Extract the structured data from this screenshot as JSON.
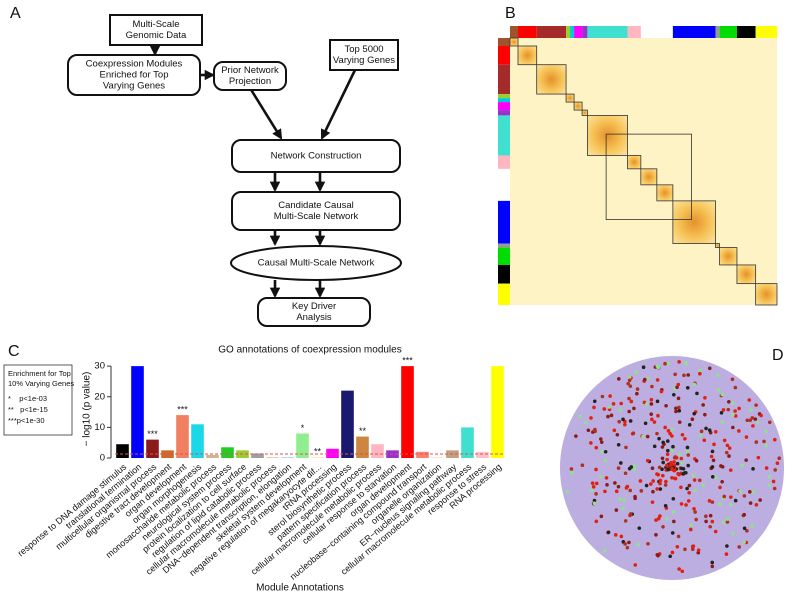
{
  "panel_labels": [
    "A",
    "B",
    "C",
    "D"
  ],
  "diagram": {
    "nodes": [
      {
        "lines": [
          "Multi-Scale",
          "Genomic Data"
        ]
      },
      {
        "lines": [
          "Coexpression Modules",
          "Enriched for Top",
          "Varying Genes"
        ]
      },
      {
        "lines": [
          "Prior Network",
          "Projection"
        ]
      },
      {
        "lines": [
          "Top 5000",
          "Varying Genes"
        ]
      },
      {
        "lines": [
          "Network Construction"
        ]
      },
      {
        "lines": [
          "Candidate Causal",
          "Multi-Scale Network"
        ]
      },
      {
        "lines": [
          "Causal Multi-Scale Network"
        ]
      },
      {
        "lines": [
          "Key Driver",
          "Analysis"
        ]
      }
    ]
  },
  "chart_data": {
    "type": "bar",
    "title": "GO annotations of coexpression modules",
    "x_label": "Module Annotations",
    "y_label": "− log10 (p value)",
    "categories": [
      "response to DNA damage stimulus",
      "translational termination",
      "multicellular organismal process",
      "digestive tract development",
      "organ development",
      "organ morphogenesis",
      "monosaccharide metabolic process",
      "neurological system process",
      "protein localization to cell surface",
      "regulation of lipid catabolic process",
      "cellular macromolecule metabolic process",
      "DNA−dependent transcription, elongation",
      "skeletal system development",
      "negative regulation of megakaryocyte dif...",
      "tRNA processing",
      "sterol biosynthetic process",
      "pattern specification process",
      "cellular macromolecule metabolic process",
      "cellular response to starvation",
      "organ development",
      "nucleobase−containing compound transport",
      "organelle organization",
      "ER−nucleus signaling pathway",
      "cellular macromolecule metabolic process",
      "response to stress",
      "RNA processing"
    ],
    "values": [
      4.5,
      30,
      6,
      2.5,
      14,
      11,
      1,
      3.5,
      2.5,
      1.5,
      0.3,
      0.3,
      8,
      0.3,
      3,
      22,
      7,
      4.5,
      2.5,
      30,
      2,
      0.3,
      2.5,
      10,
      2,
      30
    ],
    "colors": [
      "#000000",
      "#0000ff",
      "#8b1a1a",
      "#cd6a2b",
      "#f08060",
      "#1ad8e8",
      "#d2b48c",
      "#22cc22",
      "#9acd32",
      "#a0a0a0",
      "#e8c8a8",
      "#add8e6",
      "#90ee90",
      "#ffe4b5",
      "#ff00ff",
      "#191970",
      "#cd853f",
      "#ffb6c1",
      "#9932cc",
      "#ff0000",
      "#fa8072",
      "#ffe4e1",
      "#c0a080",
      "#40e0d0",
      "#ffc0cb",
      "#ffff00"
    ],
    "significance": [
      null,
      null,
      "***",
      null,
      "***",
      null,
      null,
      null,
      null,
      null,
      null,
      null,
      "*",
      "**",
      null,
      null,
      "**",
      null,
      null,
      "***",
      null,
      null,
      null,
      null,
      null,
      null
    ],
    "threshold": 1.3,
    "ylim": [
      0,
      32
    ],
    "yticks": [
      0,
      10,
      20,
      30
    ],
    "legend": {
      "title_lines": [
        "Enrichment for Top",
        "10% Varying Genes"
      ],
      "items": [
        "*    p<1e-03",
        "**   p<1e-15",
        "***p<1e-30"
      ]
    }
  }
}
